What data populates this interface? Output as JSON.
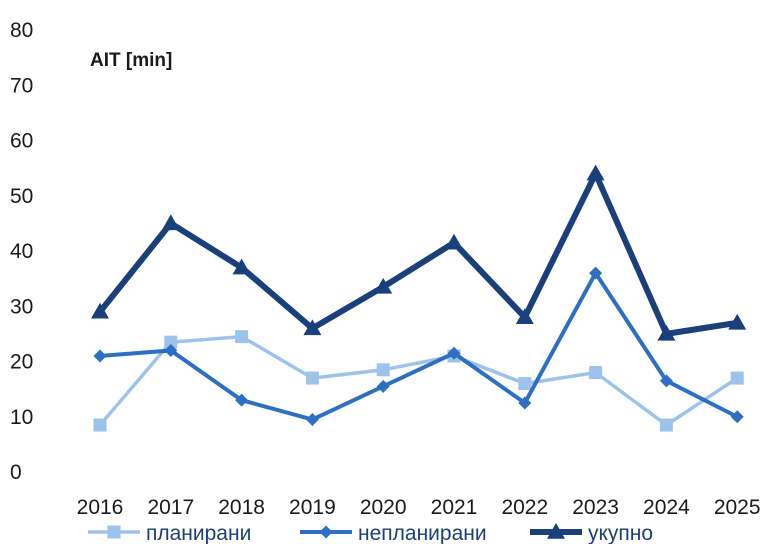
{
  "chart_data": {
    "type": "line",
    "ylabel": "AIT [min]",
    "xlabel": "",
    "title": "",
    "ylim": [
      0,
      80
    ],
    "yticks": [
      "0",
      "10",
      "20",
      "30",
      "40",
      "50",
      "60",
      "70",
      "80"
    ],
    "categories": [
      "2016",
      "2017",
      "2018",
      "2019",
      "2020",
      "2021",
      "2022",
      "2023",
      "2024",
      "2025"
    ],
    "grid": false,
    "legend_position": "bottom",
    "series": [
      {
        "name": "планирани",
        "marker": "square",
        "color": "#9ec3ea",
        "values": [
          8.5,
          23.5,
          24.5,
          17,
          18.5,
          21,
          16,
          18,
          8.5,
          17
        ]
      },
      {
        "name": "непланирани",
        "marker": "diamond",
        "color": "#2e6fc4",
        "values": [
          21,
          22,
          13,
          9.5,
          15.5,
          21.5,
          12.5,
          36,
          16.5,
          10
        ]
      },
      {
        "name": "укупно",
        "marker": "triangle",
        "color": "#1a3f7a",
        "values": [
          29,
          45,
          37,
          26,
          33.5,
          41.5,
          28,
          54,
          25,
          27
        ]
      }
    ]
  }
}
